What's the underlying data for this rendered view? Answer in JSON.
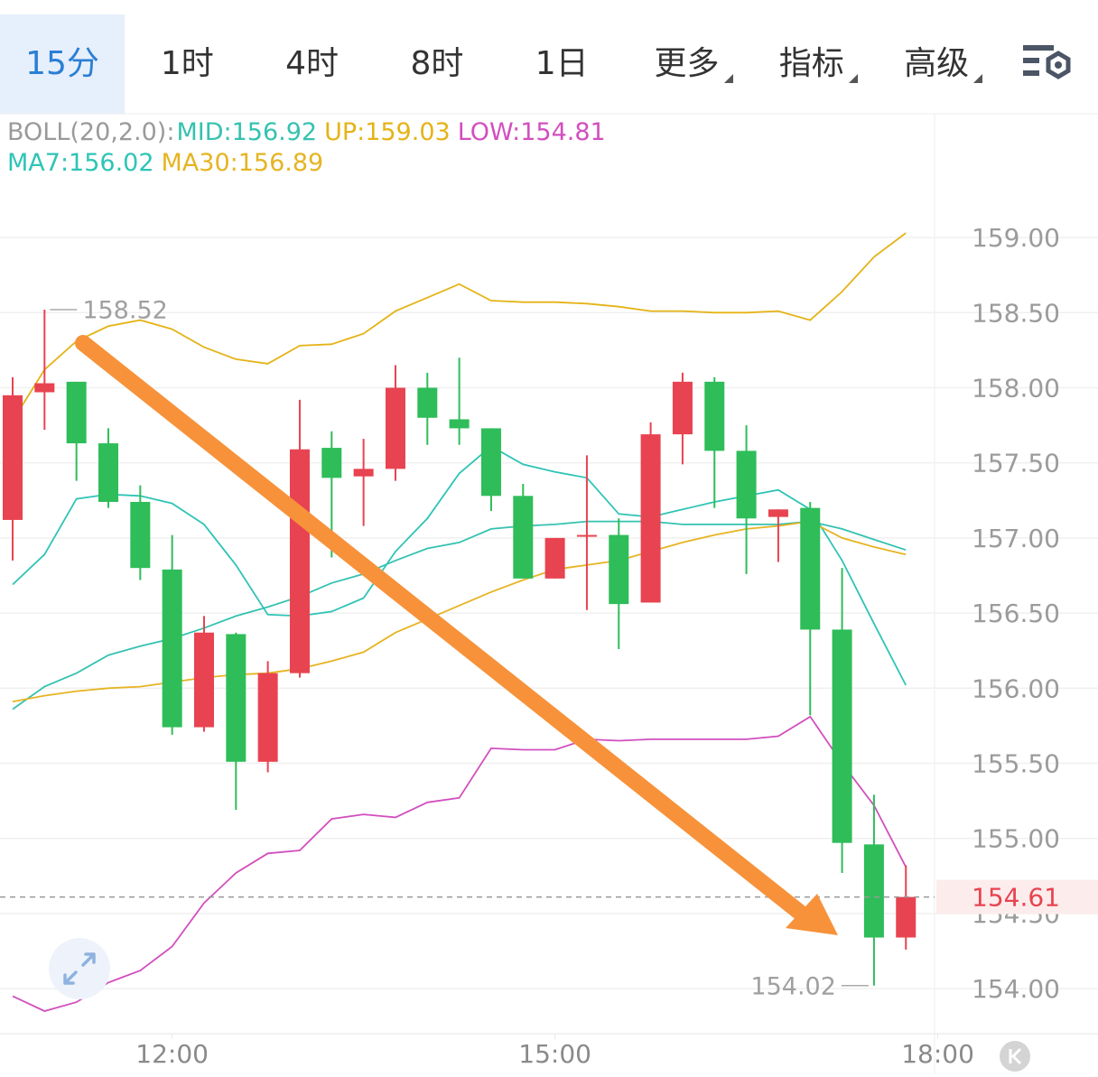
{
  "tabs": [
    "15分",
    "1时",
    "4时",
    "8时",
    "1日",
    "更多",
    "指标",
    "高级"
  ],
  "chart_data": {
    "type": "candlestick",
    "indicator": "BOLL(20,2.0):",
    "categories": [
      null,
      null,
      null,
      null,
      null,
      "12:00",
      null,
      null,
      null,
      null,
      null,
      null,
      null,
      null,
      null,
      null,
      null,
      "15:00",
      null,
      null,
      null,
      null,
      null,
      null,
      null,
      null,
      null,
      null,
      null
    ],
    "open": [
      157.12,
      157.97,
      158.04,
      157.63,
      157.24,
      156.79,
      155.74,
      156.36,
      155.51,
      156.1,
      157.6,
      157.41,
      157.46,
      158.0,
      157.79,
      157.73,
      157.28,
      156.73,
      157.02,
      157.02,
      156.57,
      157.69,
      158.04,
      157.58,
      157.14,
      157.2,
      156.39,
      154.96,
      154.34
    ],
    "high": [
      158.07,
      158.52,
      158.04,
      157.73,
      157.35,
      157.02,
      156.48,
      156.37,
      156.18,
      157.92,
      157.71,
      157.66,
      158.15,
      158.1,
      158.2,
      157.73,
      157.36,
      157.0,
      157.55,
      157.13,
      157.77,
      158.1,
      158.07,
      157.75,
      157.19,
      157.24,
      156.8,
      155.29,
      154.82
    ],
    "low": [
      156.85,
      157.72,
      157.38,
      157.2,
      156.72,
      155.69,
      155.71,
      155.19,
      155.44,
      156.07,
      156.87,
      157.08,
      157.38,
      157.62,
      157.62,
      157.18,
      156.73,
      156.73,
      156.52,
      156.26,
      156.57,
      157.49,
      157.2,
      156.76,
      156.84,
      155.82,
      154.77,
      154.02,
      154.26
    ],
    "close": [
      157.95,
      158.03,
      157.63,
      157.24,
      156.8,
      155.74,
      156.37,
      155.51,
      156.1,
      157.59,
      157.4,
      157.46,
      158.0,
      157.8,
      157.73,
      157.28,
      156.73,
      157.0,
      157.02,
      156.56,
      157.69,
      158.04,
      157.58,
      157.13,
      157.19,
      156.39,
      154.97,
      154.34,
      154.61
    ],
    "up_color": "#e84350",
    "down_color": "#2ebd59",
    "series": [
      {
        "name": "MID:156.92",
        "color": "#35c2b0",
        "values": [
          155.86,
          156.01,
          156.1,
          156.22,
          156.28,
          156.33,
          156.4,
          156.48,
          156.54,
          156.61,
          156.7,
          156.76,
          156.85,
          156.93,
          156.97,
          157.06,
          157.08,
          157.09,
          157.11,
          157.11,
          157.11,
          157.09,
          157.09,
          157.09,
          157.09,
          157.11,
          157.06,
          156.99,
          156.92
        ]
      },
      {
        "name": "UP:159.03",
        "color": "#e5b317",
        "values": [
          157.78,
          158.12,
          158.31,
          158.41,
          158.45,
          158.39,
          158.27,
          158.19,
          158.16,
          158.28,
          158.29,
          158.36,
          158.51,
          158.6,
          158.69,
          158.58,
          158.57,
          158.57,
          158.56,
          158.54,
          158.51,
          158.51,
          158.5,
          158.5,
          158.51,
          158.45,
          158.64,
          158.87,
          159.03
        ]
      },
      {
        "name": "LOW:154.81",
        "color": "#d24fbf",
        "values": [
          153.95,
          153.85,
          153.91,
          154.04,
          154.12,
          154.28,
          154.57,
          154.77,
          154.9,
          154.92,
          155.13,
          155.16,
          155.14,
          155.24,
          155.27,
          155.6,
          155.59,
          155.59,
          155.66,
          155.65,
          155.66,
          155.66,
          155.66,
          155.66,
          155.68,
          155.81,
          155.5,
          155.22,
          154.81
        ]
      },
      {
        "name": "MA7:156.02",
        "color": "#2ec4b6",
        "values": [
          156.69,
          156.89,
          157.26,
          157.29,
          157.28,
          157.23,
          157.09,
          156.82,
          156.49,
          156.48,
          156.51,
          156.6,
          156.91,
          157.13,
          157.43,
          157.61,
          157.49,
          157.44,
          157.4,
          157.16,
          157.14,
          157.19,
          157.24,
          157.28,
          157.32,
          157.19,
          156.85,
          156.43,
          156.02
        ]
      },
      {
        "name": "MA30:156.89",
        "color": "#e6b422",
        "values": [
          155.91,
          155.95,
          155.98,
          156.0,
          156.01,
          156.04,
          156.07,
          156.09,
          156.1,
          156.13,
          156.18,
          156.24,
          156.37,
          156.46,
          156.55,
          156.64,
          156.72,
          156.79,
          156.82,
          156.85,
          156.91,
          156.97,
          157.02,
          157.06,
          157.08,
          157.11,
          157.0,
          156.94,
          156.89
        ]
      }
    ],
    "ylim": [
      153.7,
      159.8
    ],
    "yticks": [
      {
        "value": 154,
        "label": "154.00"
      },
      {
        "value": 154.5,
        "label": "154.50"
      },
      {
        "value": 155,
        "label": "155.00"
      },
      {
        "value": 155.5,
        "label": "155.50"
      },
      {
        "value": 156,
        "label": "156.00"
      },
      {
        "value": 156.5,
        "label": "156.50"
      },
      {
        "value": 157,
        "label": "157.00"
      },
      {
        "value": 157.5,
        "label": "157.50"
      },
      {
        "value": 158,
        "label": "158.00"
      },
      {
        "value": 158.5,
        "label": "158.50"
      },
      {
        "value": 159,
        "label": "159.00"
      }
    ],
    "xticks": [
      "12:00",
      "15:00",
      "18:00"
    ],
    "grid": true
  }
}
